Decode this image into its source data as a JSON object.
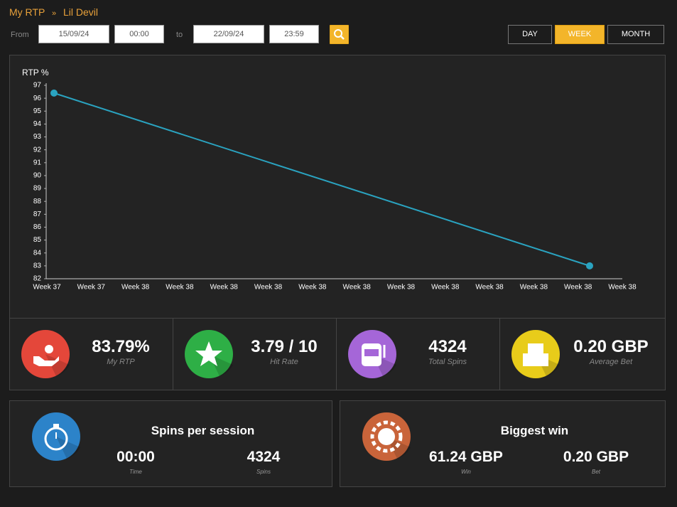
{
  "breadcrumb": {
    "root": "My RTP",
    "separator": "»",
    "current": "Lil Devil"
  },
  "filters": {
    "from_label": "From",
    "from_date": "15/09/24",
    "from_time": "00:00",
    "to_label": "to",
    "to_date": "22/09/24",
    "to_time": "23:59",
    "periods": [
      "DAY",
      "WEEK",
      "MONTH"
    ],
    "active_period": "WEEK"
  },
  "chart_data": {
    "type": "line",
    "y_label": "RTP %",
    "x_tick_labels": [
      "Week 37",
      "Week 37",
      "Week 38",
      "Week 38",
      "Week 38",
      "Week 38",
      "Week 38",
      "Week 38",
      "Week 38",
      "Week 38",
      "Week 38",
      "Week 38",
      "Week 38",
      "Week 38"
    ],
    "x": [
      "Week 37",
      "Week 38"
    ],
    "values": [
      96.4,
      83.0
    ],
    "color": "#2aa3c0",
    "ylim": [
      82,
      97
    ],
    "yticks": [
      82,
      83,
      84,
      85,
      86,
      87,
      88,
      89,
      90,
      91,
      92,
      93,
      94,
      95,
      96,
      97
    ]
  },
  "stats": [
    {
      "value": "83.79%",
      "label": "My RTP"
    },
    {
      "value": "3.79 / 10",
      "label": "Hit Rate"
    },
    {
      "value": "4324",
      "label": "Total Spins"
    },
    {
      "value": "0.20 GBP",
      "label": "Average Bet"
    }
  ],
  "panels": [
    {
      "title": "Spins per session",
      "items": [
        {
          "value": "00:00",
          "label": "Time"
        },
        {
          "value": "4324",
          "label": "Spins"
        }
      ]
    },
    {
      "title": "Biggest win",
      "items": [
        {
          "value": "61.24 GBP",
          "label": "Win"
        },
        {
          "value": "0.20 GBP",
          "label": "Bet"
        }
      ]
    }
  ]
}
